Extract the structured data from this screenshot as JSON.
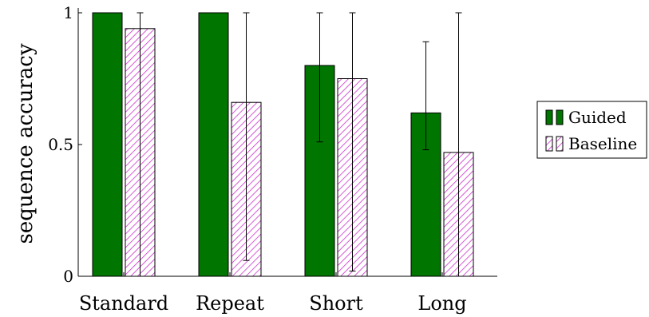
{
  "chart_data": {
    "type": "bar",
    "title": "",
    "xlabel": "",
    "ylabel": "sequence accuracy",
    "ylim": [
      0,
      1
    ],
    "yticks": [
      0,
      0.5,
      1
    ],
    "ytick_labels": [
      "0",
      "0.5",
      "1"
    ],
    "categories": [
      "Standard",
      "Repeat",
      "Short",
      "Long"
    ],
    "legend_position": "right",
    "grid": false,
    "series": [
      {
        "name": "Guided",
        "color": "#007500",
        "pattern": "solid",
        "values": [
          1.0,
          1.0,
          0.8,
          0.62
        ],
        "error_low": [
          1.0,
          1.0,
          0.51,
          0.48
        ],
        "error_high": [
          1.0,
          1.0,
          1.0,
          0.89
        ]
      },
      {
        "name": "Baseline",
        "color": "#cc33cc",
        "pattern": "hatched",
        "values": [
          0.94,
          0.66,
          0.75,
          0.47
        ],
        "error_low": [
          0.0,
          0.06,
          0.02,
          0.0
        ],
        "error_high": [
          1.0,
          1.0,
          1.0,
          1.0
        ]
      }
    ]
  }
}
